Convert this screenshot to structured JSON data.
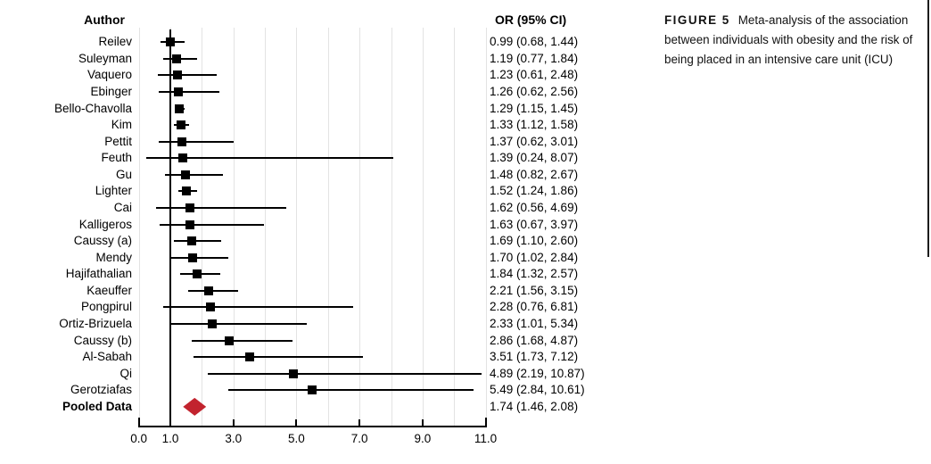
{
  "table": {
    "author_header": "Author",
    "or_header": "OR (95% CI)"
  },
  "caption": {
    "label": "FIGURE 5",
    "text": "Meta-analysis of the association between individuals with obesity and the risk of being placed in an intensive care unit (ICU)"
  },
  "colors": {
    "marker": "#000000",
    "pooled_diamond": "#c2232e",
    "gridline": "#e3e3e3"
  },
  "chart_data": {
    "type": "forest",
    "title": "Meta-analysis of the association between individuals with obesity and the risk of being placed in an intensive care unit (ICU)",
    "or_column_header": "OR (95% CI)",
    "author_column_header": "Author",
    "xlim": [
      0,
      11
    ],
    "null_line": 1.0,
    "gridlines": [
      0,
      1,
      2,
      3,
      4,
      5,
      6,
      7,
      8,
      9,
      10,
      11
    ],
    "x_ticks": [
      0.0,
      1.0,
      3.0,
      5.0,
      7.0,
      9.0,
      11.0
    ],
    "x_tick_labels": [
      "0.0",
      "1.0",
      "3.0",
      "5.0",
      "7.0",
      "9.0",
      "11.0"
    ],
    "grid": true,
    "studies": [
      {
        "author": "Reilev",
        "or": 0.99,
        "ci_low": 0.68,
        "ci_high": 1.44,
        "or_label": "0.99 (0.68, 1.44)"
      },
      {
        "author": "Suleyman",
        "or": 1.19,
        "ci_low": 0.77,
        "ci_high": 1.84,
        "or_label": "1.19 (0.77, 1.84)"
      },
      {
        "author": "Vaquero",
        "or": 1.23,
        "ci_low": 0.61,
        "ci_high": 2.48,
        "or_label": "1.23 (0.61, 2.48)"
      },
      {
        "author": "Ebinger",
        "or": 1.26,
        "ci_low": 0.62,
        "ci_high": 2.56,
        "or_label": "1.26 (0.62, 2.56)"
      },
      {
        "author": "Bello-Chavolla",
        "or": 1.29,
        "ci_low": 1.15,
        "ci_high": 1.45,
        "or_label": "1.29 (1.15, 1.45)"
      },
      {
        "author": "Kim",
        "or": 1.33,
        "ci_low": 1.12,
        "ci_high": 1.58,
        "or_label": "1.33 (1.12, 1.58)"
      },
      {
        "author": "Pettit",
        "or": 1.37,
        "ci_low": 0.62,
        "ci_high": 3.01,
        "or_label": "1.37 (0.62, 3.01)"
      },
      {
        "author": "Feuth",
        "or": 1.39,
        "ci_low": 0.24,
        "ci_high": 8.07,
        "or_label": "1.39 (0.24, 8.07)"
      },
      {
        "author": "Gu",
        "or": 1.48,
        "ci_low": 0.82,
        "ci_high": 2.67,
        "or_label": "1.48 (0.82, 2.67)"
      },
      {
        "author": "Lighter",
        "or": 1.52,
        "ci_low": 1.24,
        "ci_high": 1.86,
        "or_label": "1.52 (1.24, 1.86)"
      },
      {
        "author": "Cai",
        "or": 1.62,
        "ci_low": 0.56,
        "ci_high": 4.69,
        "or_label": "1.62 (0.56, 4.69)"
      },
      {
        "author": "Kalligeros",
        "or": 1.63,
        "ci_low": 0.67,
        "ci_high": 3.97,
        "or_label": "1.63 (0.67, 3.97)"
      },
      {
        "author": "Caussy (a)",
        "or": 1.69,
        "ci_low": 1.1,
        "ci_high": 2.6,
        "or_label": "1.69 (1.10, 2.60)"
      },
      {
        "author": "Mendy",
        "or": 1.7,
        "ci_low": 1.02,
        "ci_high": 2.84,
        "or_label": "1.70 (1.02, 2.84)"
      },
      {
        "author": "Hajifathalian",
        "or": 1.84,
        "ci_low": 1.32,
        "ci_high": 2.57,
        "or_label": "1.84 (1.32, 2.57)"
      },
      {
        "author": "Kaeuffer",
        "or": 2.21,
        "ci_low": 1.56,
        "ci_high": 3.15,
        "or_label": "2.21 (1.56, 3.15)"
      },
      {
        "author": "Pongpirul",
        "or": 2.28,
        "ci_low": 0.76,
        "ci_high": 6.81,
        "or_label": "2.28 (0.76, 6.81)"
      },
      {
        "author": "Ortiz-Brizuela",
        "or": 2.33,
        "ci_low": 1.01,
        "ci_high": 5.34,
        "or_label": "2.33 (1.01, 5.34)"
      },
      {
        "author": "Caussy (b)",
        "or": 2.86,
        "ci_low": 1.68,
        "ci_high": 4.87,
        "or_label": "2.86 (1.68, 4.87)"
      },
      {
        "author": "Al-Sabah",
        "or": 3.51,
        "ci_low": 1.73,
        "ci_high": 7.12,
        "or_label": "3.51 (1.73, 7.12)"
      },
      {
        "author": "Qi",
        "or": 4.89,
        "ci_low": 2.19,
        "ci_high": 10.87,
        "or_label": "4.89 (2.19, 10.87)"
      },
      {
        "author": "Gerotziafas",
        "or": 5.49,
        "ci_low": 2.84,
        "ci_high": 10.61,
        "or_label": "5.49 (2.84, 10.61)"
      }
    ],
    "pooled": {
      "author": "Pooled Data",
      "or": 1.74,
      "ci_low": 1.46,
      "ci_high": 2.08,
      "or_label": "1.74 (1.46, 2.08)"
    }
  }
}
